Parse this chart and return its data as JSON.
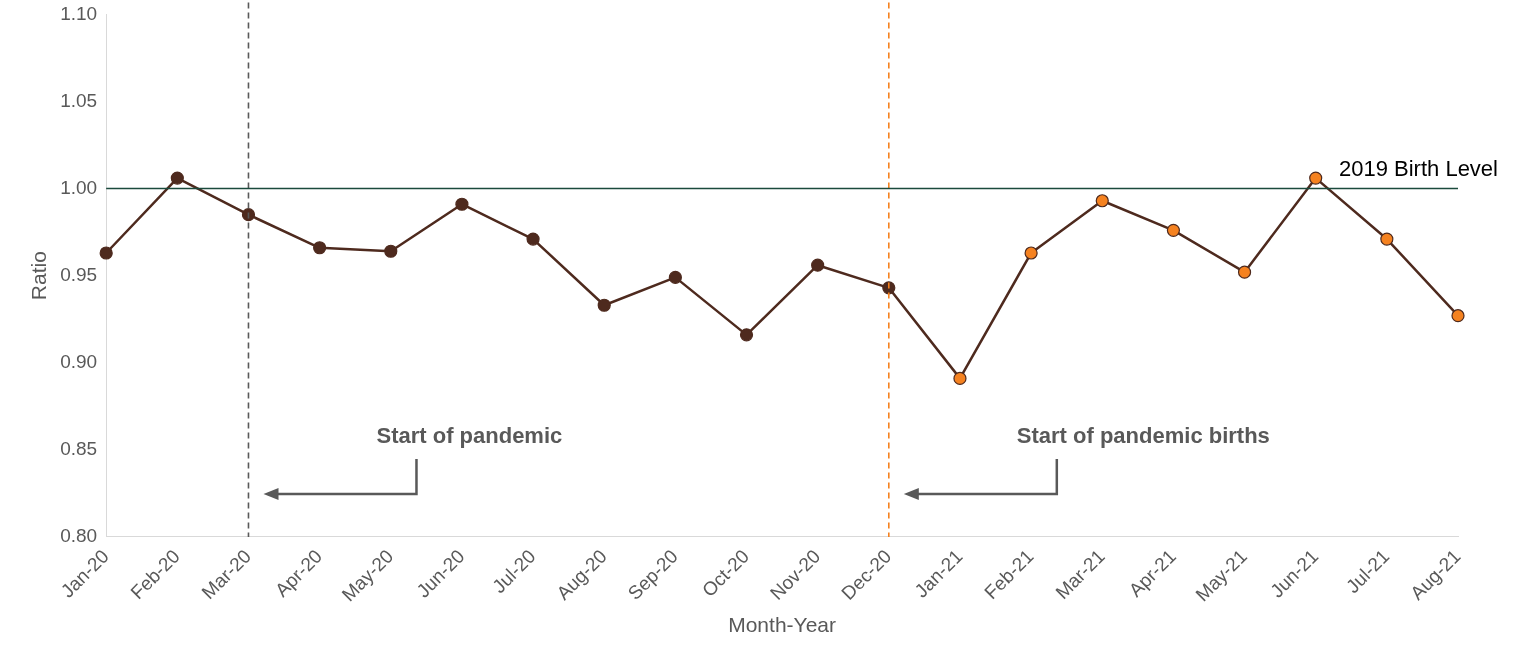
{
  "chart_data": {
    "type": "line",
    "xlabel": "Month-Year",
    "ylabel": "Ratio",
    "categories": [
      "Jan-20",
      "Feb-20",
      "Mar-20",
      "Apr-20",
      "May-20",
      "Jun-20",
      "Jul-20",
      "Aug-20",
      "Sep-20",
      "Oct-20",
      "Nov-20",
      "Dec-20",
      "Jan-21",
      "Feb-21",
      "Mar-21",
      "Apr-21",
      "May-21",
      "Jun-21",
      "Jul-21",
      "Aug-21"
    ],
    "series": [
      {
        "color": "#4e2a1e",
        "colors": [
          "#4e2a1e",
          "#4e2a1e",
          "#4e2a1e",
          "#4e2a1e",
          "#4e2a1e",
          "#4e2a1e",
          "#4e2a1e",
          "#4e2a1e",
          "#4e2a1e",
          "#4e2a1e",
          "#4e2a1e",
          "#4e2a1e",
          "#f58220",
          "#f58220",
          "#f58220",
          "#f58220",
          "#f58220",
          "#f58220",
          "#f58220",
          "#f58220"
        ],
        "values": [
          0.963,
          1.006,
          0.985,
          0.966,
          0.964,
          0.991,
          0.971,
          0.933,
          0.949,
          0.916,
          0.956,
          0.943,
          0.891,
          0.963,
          0.993,
          0.976,
          0.952,
          1.006,
          0.971,
          0.927
        ]
      }
    ],
    "ylim": [
      0.8,
      1.1
    ],
    "yticks": [
      {
        "value": 0.8,
        "label": "0.80"
      },
      {
        "value": 0.85,
        "label": "0.85"
      },
      {
        "value": 0.9,
        "label": "0.90"
      },
      {
        "value": 0.95,
        "label": "0.95"
      },
      {
        "value": 1.0,
        "label": "1.00"
      },
      {
        "value": 1.05,
        "label": "1.05"
      },
      {
        "value": 1.1,
        "label": "1.10"
      }
    ],
    "grid": false,
    "legend": false,
    "marker": "circle",
    "line_style": "solid",
    "annotations": [
      "Start of pandemic",
      "Start of pandemic births"
    ],
    "ref_lines": [
      {
        "axis": "x",
        "value": "Mar-20",
        "color": "#595959",
        "line_style": "dashed"
      },
      {
        "axis": "x",
        "value": "Dec-20",
        "color": "#f58220",
        "line_style": "dashed"
      },
      {
        "axis": "y",
        "value": 1.0,
        "label": "2019 Birth Level",
        "color": "#1b4a3c",
        "line_style": "solid"
      }
    ]
  }
}
